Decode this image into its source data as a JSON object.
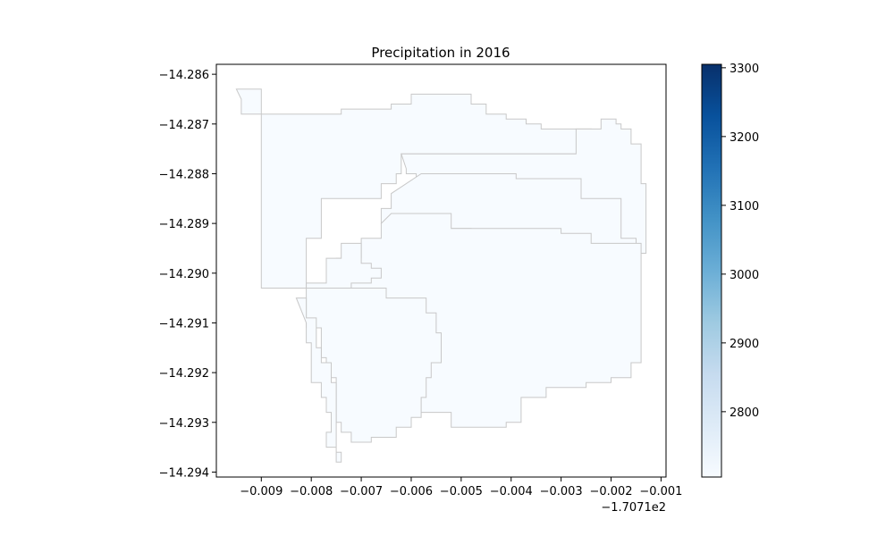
{
  "chart_data": {
    "type": "choropleth-map",
    "title": "Precipitation in 2016",
    "xlabel": "",
    "ylabel": "",
    "x_offset_text": "−1.7071e2",
    "x_ticks": [
      "−0.009",
      "−0.008",
      "−0.007",
      "−0.006",
      "−0.005",
      "−0.004",
      "−0.003",
      "−0.002",
      "−0.001"
    ],
    "y_ticks": [
      "−14.286",
      "−14.287",
      "−14.288",
      "−14.289",
      "−14.290",
      "−14.291",
      "−14.292",
      "−14.293",
      "−14.294"
    ],
    "xlim": [
      -170.7199,
      -170.7109
    ],
    "ylim": [
      -14.2941,
      -14.2858
    ],
    "grid": false,
    "colormap": "Blues",
    "colorbar": {
      "ticks": [
        "2800",
        "2900",
        "3000",
        "3100",
        "3200",
        "3300"
      ],
      "vmin": 2705,
      "vmax": 3305
    },
    "regions": [
      {
        "value": 2705,
        "fill": "#f7fbff",
        "outline": [
          [
            -170.7195,
            -14.2863
          ],
          [
            -170.719,
            -14.2868
          ],
          [
            -170.7176,
            -14.2868
          ],
          [
            -170.7174,
            -14.2867
          ],
          [
            -170.7164,
            -14.2866
          ],
          [
            -170.716,
            -14.2864
          ],
          [
            -170.7152,
            -14.2864
          ],
          [
            -170.7148,
            -14.2866
          ],
          [
            -170.7145,
            -14.2868
          ],
          [
            -170.7141,
            -14.2869
          ],
          [
            -170.7137,
            -14.287
          ],
          [
            -170.7134,
            -14.2871
          ],
          [
            -170.7127,
            -14.2871
          ],
          [
            -170.7124,
            -14.2873
          ],
          [
            -170.7124,
            -14.2874
          ],
          [
            -170.7125,
            -14.2876
          ],
          [
            -170.7137,
            -14.2876
          ],
          [
            -170.7152,
            -14.2876
          ],
          [
            -170.7162,
            -14.2876
          ],
          [
            -170.7162,
            -14.288
          ],
          [
            -170.7163,
            -14.2882
          ],
          [
            -170.7166,
            -14.2885
          ],
          [
            -170.7169,
            -14.2885
          ],
          [
            -170.7178,
            -14.2893
          ],
          [
            -170.7181,
            -14.2896
          ],
          [
            -170.7181,
            -14.2903
          ],
          [
            -170.7183,
            -14.2903
          ],
          [
            -170.7183,
            -14.2903
          ],
          [
            -170.719,
            -14.2868
          ],
          [
            -170.7194,
            -14.2865
          ]
        ]
      },
      {
        "value": 2705,
        "fill": "#f7fbff",
        "outline": [
          [
            -170.7162,
            -14.2876
          ],
          [
            -170.7137,
            -14.2876
          ],
          [
            -170.7127,
            -14.2871
          ],
          [
            -170.7122,
            -14.2869
          ],
          [
            -170.7119,
            -14.287
          ],
          [
            -170.7118,
            -14.2871
          ],
          [
            -170.7116,
            -14.2874
          ],
          [
            -170.7114,
            -14.2877
          ],
          [
            -170.7114,
            -14.2882
          ],
          [
            -170.7113,
            -14.2886
          ],
          [
            -170.7113,
            -14.2896
          ],
          [
            -170.7115,
            -14.2896
          ],
          [
            -170.7118,
            -14.2893
          ],
          [
            -170.7122,
            -14.2889
          ],
          [
            -170.7126,
            -14.2885
          ],
          [
            -170.713,
            -14.2883
          ],
          [
            -170.7134,
            -14.2881
          ],
          [
            -170.7139,
            -14.2881
          ],
          [
            -170.7156,
            -14.2881
          ],
          [
            -170.7159,
            -14.288
          ],
          [
            -170.7161,
            -14.2879
          ]
        ]
      },
      {
        "value": 2705,
        "fill": "#f7fbff",
        "outline": [
          [
            -170.7158,
            -14.288
          ],
          [
            -170.7139,
            -14.2881
          ],
          [
            -170.7126,
            -14.2885
          ],
          [
            -170.7118,
            -14.2893
          ],
          [
            -170.7115,
            -14.2896
          ],
          [
            -170.7124,
            -14.2894
          ],
          [
            -170.713,
            -14.2892
          ],
          [
            -170.7148,
            -14.2891
          ],
          [
            -170.716,
            -14.289
          ],
          [
            -170.7166,
            -14.2889
          ],
          [
            -170.7166,
            -14.2887
          ],
          [
            -170.7164,
            -14.2884
          ]
        ]
      },
      {
        "value": 2705,
        "fill": "#f7fbff",
        "outline": [
          [
            -170.7164,
            -14.2888
          ],
          [
            -170.7152,
            -14.2891
          ],
          [
            -170.7139,
            -14.2891
          ],
          [
            -170.713,
            -14.2892
          ],
          [
            -170.7124,
            -14.2894
          ],
          [
            -170.7114,
            -14.2896
          ],
          [
            -170.7114,
            -14.2901
          ],
          [
            -170.7114,
            -14.2918
          ],
          [
            -170.7116,
            -14.2921
          ],
          [
            -170.712,
            -14.2922
          ],
          [
            -170.7125,
            -14.2923
          ],
          [
            -170.7133,
            -14.2925
          ],
          [
            -170.7138,
            -14.293
          ],
          [
            -170.7141,
            -14.2931
          ],
          [
            -170.7152,
            -14.2928
          ],
          [
            -170.716,
            -14.2924
          ],
          [
            -170.7163,
            -14.292
          ],
          [
            -170.7168,
            -14.2915
          ],
          [
            -170.7168,
            -14.2912
          ],
          [
            -170.7171,
            -14.2908
          ],
          [
            -170.7174,
            -14.2903
          ],
          [
            -170.7175,
            -14.2897
          ],
          [
            -170.717,
            -14.2893
          ],
          [
            -170.7166,
            -14.289
          ]
        ]
      },
      {
        "value": 2705,
        "fill": "#f7fbff",
        "outline": [
          [
            -170.7183,
            -14.2903
          ],
          [
            -170.7174,
            -14.2903
          ],
          [
            -170.7172,
            -14.2902
          ],
          [
            -170.7168,
            -14.2901
          ],
          [
            -170.7166,
            -14.2899
          ],
          [
            -170.7168,
            -14.2898
          ],
          [
            -170.717,
            -14.2894
          ],
          [
            -170.7174,
            -14.2897
          ],
          [
            -170.7177,
            -14.2902
          ],
          [
            -170.7181,
            -14.2906
          ],
          [
            -170.7181,
            -14.2911
          ],
          [
            -170.7178,
            -14.2917
          ],
          [
            -170.7177,
            -14.2921
          ],
          [
            -170.7175,
            -14.293
          ],
          [
            -170.7174,
            -14.2932
          ],
          [
            -170.7172,
            -14.2934
          ],
          [
            -170.7168,
            -14.2933
          ],
          [
            -170.7163,
            -14.2931
          ],
          [
            -170.716,
            -14.2929
          ],
          [
            -170.7158,
            -14.2925
          ],
          [
            -170.7157,
            -14.2921
          ],
          [
            -170.7156,
            -14.2918
          ],
          [
            -170.7154,
            -14.2912
          ],
          [
            -170.7155,
            -14.2908
          ],
          [
            -170.7157,
            -14.2905
          ],
          [
            -170.7165,
            -14.2903
          ]
        ]
      },
      {
        "value": 2705,
        "fill": "#f7fbff",
        "outline": [
          [
            -170.7183,
            -14.2905
          ],
          [
            -170.7181,
            -14.2909
          ],
          [
            -170.7179,
            -14.2915
          ],
          [
            -170.7178,
            -14.2918
          ],
          [
            -170.7176,
            -14.2922
          ],
          [
            -170.7175,
            -14.2926
          ],
          [
            -170.7175,
            -14.2929
          ],
          [
            -170.7175,
            -14.2936
          ],
          [
            -170.7174,
            -14.2938
          ],
          [
            -170.7175,
            -14.2937
          ],
          [
            -170.7175,
            -14.2935
          ],
          [
            -170.7177,
            -14.2932
          ],
          [
            -170.7176,
            -14.2928
          ],
          [
            -170.7177,
            -14.2925
          ],
          [
            -170.7178,
            -14.2922
          ],
          [
            -170.718,
            -14.2914
          ],
          [
            -170.7181,
            -14.291
          ]
        ]
      }
    ]
  }
}
